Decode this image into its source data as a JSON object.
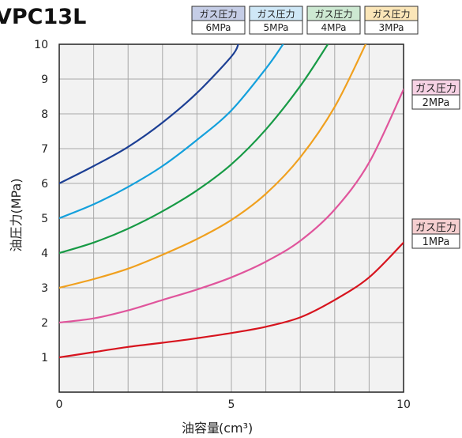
{
  "chart_data": {
    "type": "line",
    "title": "VPC13L",
    "xlabel": "油容量",
    "xlabel_unit": "(cm³)",
    "ylabel": "油圧力(MPa)",
    "xlim": [
      0,
      10
    ],
    "ylim": [
      0,
      10
    ],
    "x_ticks": [
      "0",
      "5",
      "10"
    ],
    "y_ticks": [
      "1",
      "2",
      "3",
      "4",
      "5",
      "6",
      "7",
      "8",
      "9",
      "10"
    ],
    "grid": true,
    "legend_label": "ガス圧力",
    "series": [
      {
        "name": "6MPa",
        "color": "#1c3f94",
        "legend_bg": "#c5cde6",
        "points": [
          [
            0,
            6.0
          ],
          [
            1,
            6.5
          ],
          [
            2,
            7.05
          ],
          [
            3,
            7.75
          ],
          [
            4,
            8.6
          ],
          [
            5,
            9.65
          ],
          [
            5.2,
            10.0
          ]
        ]
      },
      {
        "name": "5MPa",
        "color": "#14a0dc",
        "legend_bg": "#cfe8f7",
        "points": [
          [
            0,
            5.0
          ],
          [
            1,
            5.4
          ],
          [
            2,
            5.9
          ],
          [
            3,
            6.5
          ],
          [
            4,
            7.25
          ],
          [
            5,
            8.1
          ],
          [
            6,
            9.3
          ],
          [
            6.5,
            10.0
          ]
        ]
      },
      {
        "name": "4MPa",
        "color": "#179a45",
        "legend_bg": "#cde9d2",
        "points": [
          [
            0,
            4.0
          ],
          [
            1,
            4.3
          ],
          [
            2,
            4.7
          ],
          [
            3,
            5.2
          ],
          [
            4,
            5.8
          ],
          [
            5,
            6.55
          ],
          [
            6,
            7.55
          ],
          [
            7,
            8.8
          ],
          [
            7.8,
            10.0
          ]
        ]
      },
      {
        "name": "3MPa",
        "color": "#f0a01e",
        "legend_bg": "#fbe6b8",
        "points": [
          [
            0,
            3.0
          ],
          [
            1,
            3.25
          ],
          [
            2,
            3.55
          ],
          [
            3,
            3.95
          ],
          [
            4,
            4.4
          ],
          [
            5,
            4.95
          ],
          [
            6,
            5.7
          ],
          [
            7,
            6.75
          ],
          [
            8,
            8.2
          ],
          [
            8.9,
            10.0
          ]
        ]
      },
      {
        "name": "2MPa",
        "color": "#e0559c",
        "legend_bg": "#f6d2e4",
        "points": [
          [
            0,
            2.0
          ],
          [
            1,
            2.12
          ],
          [
            2,
            2.35
          ],
          [
            3,
            2.65
          ],
          [
            4,
            2.95
          ],
          [
            5,
            3.3
          ],
          [
            6,
            3.75
          ],
          [
            7,
            4.35
          ],
          [
            8,
            5.25
          ],
          [
            9,
            6.6
          ],
          [
            10,
            8.7
          ]
        ]
      },
      {
        "name": "1MPa",
        "color": "#d7141e",
        "legend_bg": "#f5cfd0",
        "points": [
          [
            0,
            1.0
          ],
          [
            1,
            1.15
          ],
          [
            2,
            1.3
          ],
          [
            3,
            1.42
          ],
          [
            4,
            1.55
          ],
          [
            5,
            1.7
          ],
          [
            6,
            1.88
          ],
          [
            7,
            2.15
          ],
          [
            8,
            2.65
          ],
          [
            9,
            3.3
          ],
          [
            10,
            4.3
          ]
        ]
      }
    ]
  }
}
